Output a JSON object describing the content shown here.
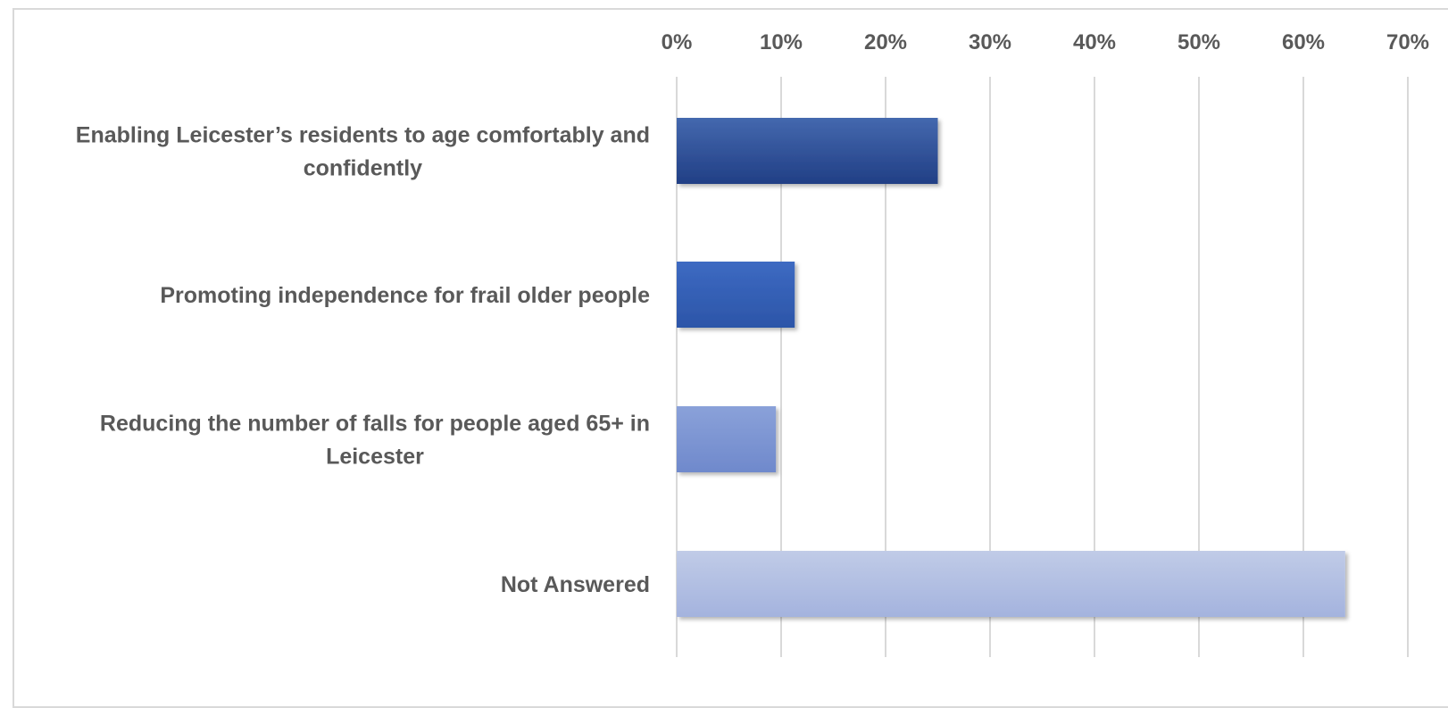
{
  "chart_data": {
    "type": "bar",
    "orientation": "horizontal",
    "title": "",
    "xlabel": "",
    "ylabel": "",
    "xlim": [
      0,
      0.7
    ],
    "ticks": [
      "0%",
      "10%",
      "20%",
      "30%",
      "40%",
      "50%",
      "60%",
      "70%"
    ],
    "x_axis_position": "top",
    "grid": true,
    "legend": "none",
    "categories": [
      "Enabling Leicester’s residents to age comfortably and confidently",
      "Promoting independence for frail older people",
      "Reducing the number of falls for people aged 65+ in Leicester",
      "Not Answered"
    ],
    "values": [
      0.25,
      0.113,
      0.095,
      0.64
    ],
    "bar_colors": [
      [
        "#4468ae",
        "#213f85"
      ],
      [
        "#3d6ac2",
        "#2c55a8"
      ],
      [
        "#8aa1d9",
        "#6f89cc"
      ],
      [
        "#c0cbe7",
        "#a4b3de"
      ]
    ],
    "gridline_color": "#d9d9d9",
    "text_color": "#595959"
  }
}
